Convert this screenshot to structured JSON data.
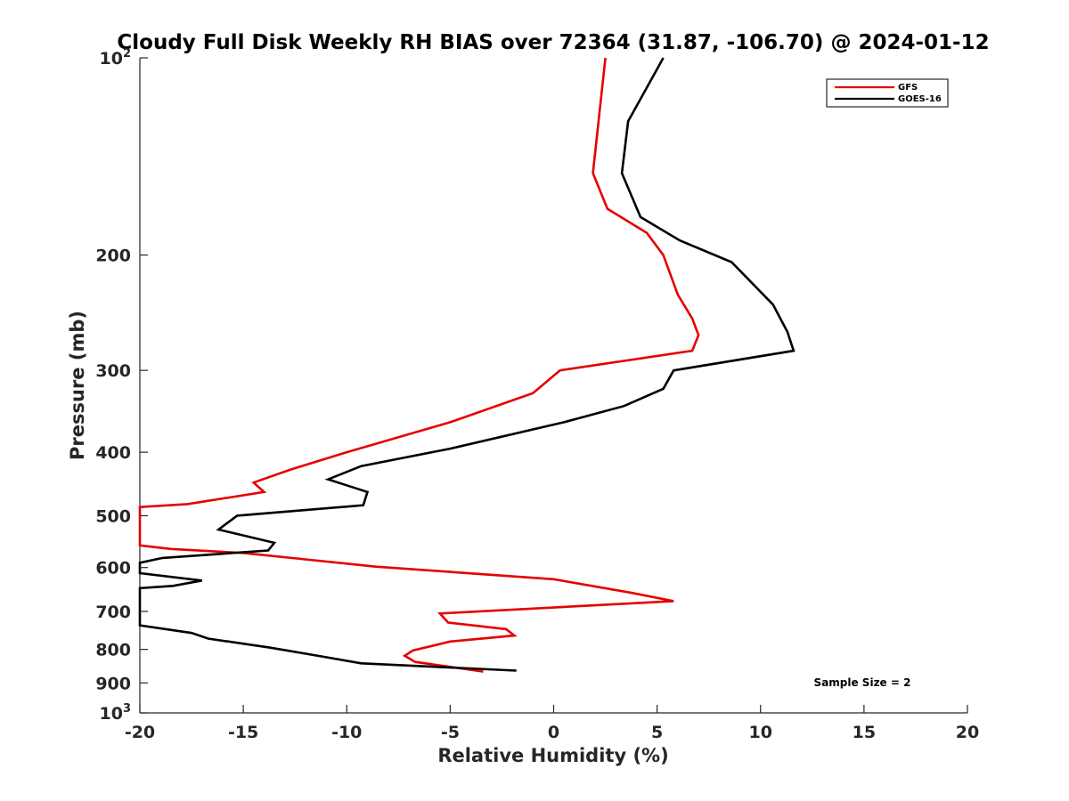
{
  "chart_data": {
    "type": "line",
    "title": "Cloudy Full Disk Weekly RH BIAS over 72364 (31.87, -106.70) @ 2024-01-12",
    "xlabel": "Relative Humidity (%)",
    "ylabel": "Pressure (mb)",
    "xlim": [
      -20,
      20
    ],
    "ylim": [
      100,
      1000
    ],
    "y_scale": "log",
    "y_reversed": true,
    "x_ticks": [
      "-20",
      "-15",
      "-10",
      "-5",
      "0",
      "5",
      "10",
      "15",
      "20"
    ],
    "x_tick_values": [
      -20,
      -15,
      -10,
      -5,
      0,
      5,
      10,
      15,
      20
    ],
    "y_ticks": [
      {
        "value": 100,
        "base": "10",
        "exp": "2"
      },
      {
        "value": 200,
        "base": "200",
        "exp": ""
      },
      {
        "value": 300,
        "base": "300",
        "exp": ""
      },
      {
        "value": 400,
        "base": "400",
        "exp": ""
      },
      {
        "value": 500,
        "base": "500",
        "exp": ""
      },
      {
        "value": 600,
        "base": "600",
        "exp": ""
      },
      {
        "value": 700,
        "base": "700",
        "exp": ""
      },
      {
        "value": 800,
        "base": "800",
        "exp": ""
      },
      {
        "value": 900,
        "base": "900",
        "exp": ""
      },
      {
        "value": 1000,
        "base": "10",
        "exp": "3"
      }
    ],
    "grid": false,
    "legend_position": "top-right",
    "annotation": "Sample Size = 2",
    "series": [
      {
        "name": "GFS",
        "color": "#e60000",
        "points": [
          [
            2.5,
            100
          ],
          [
            1.9,
            150
          ],
          [
            2.6,
            170
          ],
          [
            4.5,
            185
          ],
          [
            5.3,
            200
          ],
          [
            6.0,
            230
          ],
          [
            6.7,
            250
          ],
          [
            7.0,
            265
          ],
          [
            6.7,
            280
          ],
          [
            0.3,
            300
          ],
          [
            -1.0,
            325
          ],
          [
            -5.0,
            360
          ],
          [
            -10.0,
            400
          ],
          [
            -12.7,
            425
          ],
          [
            -14.5,
            445
          ],
          [
            -14.0,
            460
          ],
          [
            -17.7,
            480
          ],
          [
            -20.0,
            485
          ],
          [
            -20.0,
            555
          ],
          [
            -18.5,
            562
          ],
          [
            -15.0,
            570
          ],
          [
            -12.0,
            583
          ],
          [
            -8.6,
            598
          ],
          [
            0.0,
            625
          ],
          [
            3.7,
            655
          ],
          [
            5.8,
            675
          ],
          [
            -5.5,
            705
          ],
          [
            -5.1,
            728
          ],
          [
            -2.3,
            745
          ],
          [
            -1.9,
            762
          ],
          [
            -5.0,
            778
          ],
          [
            -6.8,
            803
          ],
          [
            -7.2,
            818
          ],
          [
            -6.7,
            836
          ],
          [
            -3.4,
            865
          ]
        ]
      },
      {
        "name": "GOES-16",
        "color": "#000000",
        "points": [
          [
            5.3,
            100
          ],
          [
            3.6,
            125
          ],
          [
            3.3,
            150
          ],
          [
            4.2,
            175
          ],
          [
            6.1,
            190
          ],
          [
            8.6,
            205
          ],
          [
            10.6,
            238
          ],
          [
            11.3,
            262
          ],
          [
            11.6,
            280
          ],
          [
            5.8,
            300
          ],
          [
            5.3,
            320
          ],
          [
            3.4,
            340
          ],
          [
            0.5,
            360
          ],
          [
            -5.0,
            395
          ],
          [
            -9.3,
            420
          ],
          [
            -10.9,
            440
          ],
          [
            -9.0,
            460
          ],
          [
            -9.2,
            482
          ],
          [
            -15.3,
            500
          ],
          [
            -16.2,
            525
          ],
          [
            -13.5,
            550
          ],
          [
            -13.8,
            565
          ],
          [
            -18.9,
            580
          ],
          [
            -20.0,
            590
          ],
          [
            -20.0,
            612
          ],
          [
            -17.0,
            628
          ],
          [
            -18.4,
            640
          ],
          [
            -20.0,
            645
          ],
          [
            -20.0,
            735
          ],
          [
            -17.5,
            755
          ],
          [
            -16.7,
            770
          ],
          [
            -13.7,
            795
          ],
          [
            -11.7,
            815
          ],
          [
            -9.3,
            840
          ],
          [
            -1.8,
            862
          ]
        ]
      }
    ]
  }
}
